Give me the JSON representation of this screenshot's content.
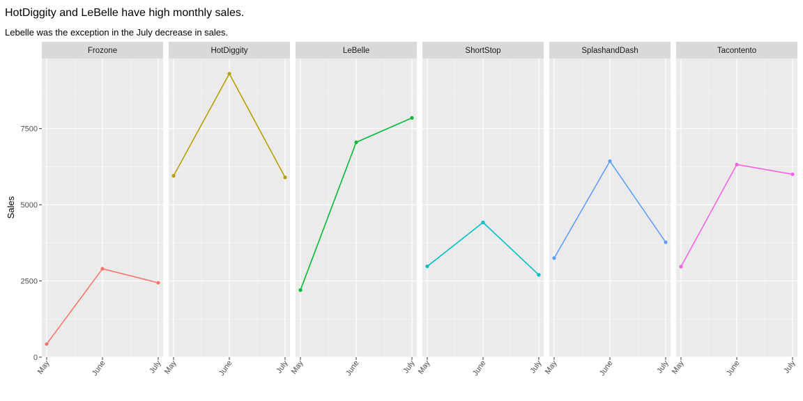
{
  "chart_data": {
    "type": "line",
    "title": "HotDiggity and LeBelle have high monthly sales.",
    "subtitle": "Lebelle was the exception in the July decrease in sales.",
    "xlabel": "",
    "ylabel": "Sales",
    "categories": [
      "May",
      "June",
      "July"
    ],
    "ylim": [
      0,
      9800
    ],
    "y_ticks": [
      0,
      2500,
      5000,
      7500
    ],
    "grid": true,
    "legend": "none",
    "facets": [
      {
        "name": "Frozone",
        "color": "#F8766D",
        "values": [
          430,
          2900,
          2440
        ]
      },
      {
        "name": "HotDiggity",
        "color": "#B79F00",
        "values": [
          5950,
          9300,
          5900
        ]
      },
      {
        "name": "LeBelle",
        "color": "#00BA38",
        "values": [
          2200,
          7050,
          7850
        ]
      },
      {
        "name": "ShortStop",
        "color": "#00BFC4",
        "values": [
          2980,
          4420,
          2700
        ]
      },
      {
        "name": "SplashandDash",
        "color": "#619CFF",
        "values": [
          3250,
          6430,
          3770
        ]
      },
      {
        "name": "Tacontento",
        "color": "#F564E3",
        "values": [
          2970,
          6320,
          6000
        ]
      }
    ]
  }
}
